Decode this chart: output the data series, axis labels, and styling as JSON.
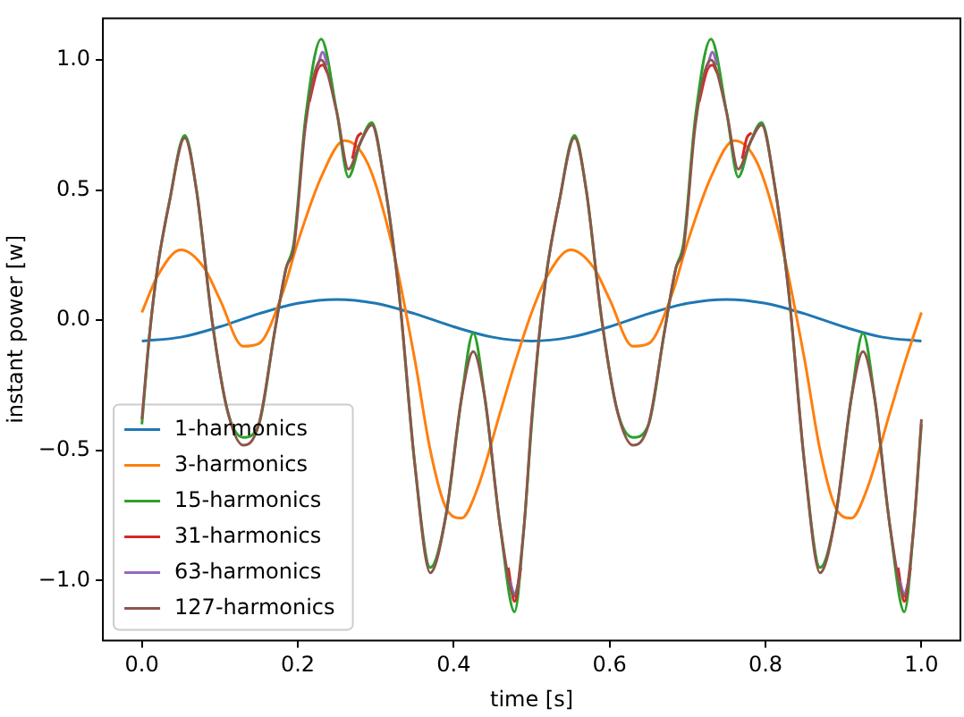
{
  "chart_data": {
    "type": "line",
    "xlabel": "time [s]",
    "ylabel": "instant power [w]",
    "xlim": [
      -0.05,
      1.05
    ],
    "ylim": [
      -1.23,
      1.16
    ],
    "xticks": [
      {
        "value": 0,
        "label": "0.0"
      },
      {
        "value": 0.2,
        "label": "0.2"
      },
      {
        "value": 0.4,
        "label": "0.4"
      },
      {
        "value": 0.6,
        "label": "0.6"
      },
      {
        "value": 0.8,
        "label": "0.8"
      },
      {
        "value": 1,
        "label": "1.0"
      }
    ],
    "yticks": [
      {
        "value": -1,
        "label": "−1.0"
      },
      {
        "value": -0.5,
        "label": "−0.5"
      },
      {
        "value": 0,
        "label": "0.0"
      },
      {
        "value": 0.5,
        "label": "0.5"
      },
      {
        "value": 1,
        "label": "1.0"
      }
    ],
    "legend": "bottom left",
    "grid": false,
    "series": [
      {
        "name": "1-harmonics",
        "color": "#1f77b4",
        "x": [
          0,
          0.05,
          0.1,
          0.15,
          0.2,
          0.25,
          0.3,
          0.35,
          0.4,
          0.45,
          0.5,
          0.55,
          0.6,
          0.65,
          0.7,
          0.75,
          0.8,
          0.85,
          0.9,
          0.95,
          1
        ],
        "values": [
          -0.08,
          -0.065,
          -0.025,
          0.025,
          0.065,
          0.08,
          0.065,
          0.025,
          -0.025,
          -0.065,
          -0.08,
          -0.065,
          -0.025,
          0.025,
          0.065,
          0.08,
          0.065,
          0.025,
          -0.025,
          -0.065,
          -0.08
        ]
      },
      {
        "name": "3-harmonics",
        "color": "#ff7f0e",
        "x": [
          0,
          0.02,
          0.05,
          0.08,
          0.1,
          0.13,
          0.15,
          0.18,
          0.2,
          0.23,
          0.26,
          0.29,
          0.32,
          0.35,
          0.37,
          0.39,
          0.41,
          0.43,
          0.46,
          0.48,
          0.5,
          0.52,
          0.55,
          0.58,
          0.6,
          0.63,
          0.65,
          0.68,
          0.7,
          0.73,
          0.76,
          0.79,
          0.82,
          0.85,
          0.87,
          0.89,
          0.91,
          0.93,
          0.96,
          0.98,
          1
        ],
        "values": [
          0.03,
          0.17,
          0.27,
          0.2,
          0.08,
          -0.1,
          -0.09,
          0.1,
          0.3,
          0.55,
          0.69,
          0.6,
          0.3,
          -0.15,
          -0.5,
          -0.72,
          -0.76,
          -0.65,
          -0.35,
          -0.15,
          0.03,
          0.17,
          0.27,
          0.2,
          0.08,
          -0.1,
          -0.09,
          0.1,
          0.3,
          0.55,
          0.69,
          0.6,
          0.3,
          -0.15,
          -0.5,
          -0.72,
          -0.76,
          -0.65,
          -0.35,
          -0.15,
          0.03
        ]
      },
      {
        "name": "15-harmonics",
        "color": "#2ca02c",
        "x": [
          0,
          0.01,
          0.02,
          0.035,
          0.055,
          0.07,
          0.09,
          0.11,
          0.13,
          0.15,
          0.17,
          0.185,
          0.195,
          0.21,
          0.23,
          0.25,
          0.265,
          0.28,
          0.295,
          0.31,
          0.33,
          0.35,
          0.37,
          0.39,
          0.41,
          0.425,
          0.44,
          0.46,
          0.478,
          0.49,
          0.5,
          0.51,
          0.52,
          0.535,
          0.555,
          0.57,
          0.59,
          0.61,
          0.63,
          0.65,
          0.67,
          0.685,
          0.695,
          0.71,
          0.73,
          0.75,
          0.765,
          0.78,
          0.795,
          0.81,
          0.83,
          0.85,
          0.87,
          0.89,
          0.91,
          0.925,
          0.94,
          0.96,
          0.978,
          0.99,
          1
        ],
        "values": [
          -0.4,
          -0.05,
          0.2,
          0.45,
          0.71,
          0.5,
          0.0,
          -0.35,
          -0.45,
          -0.4,
          -0.05,
          0.2,
          0.3,
          0.78,
          1.08,
          0.8,
          0.55,
          0.68,
          0.76,
          0.55,
          0.1,
          -0.55,
          -0.95,
          -0.75,
          -0.3,
          -0.05,
          -0.3,
          -0.8,
          -1.12,
          -0.8,
          -0.4,
          -0.05,
          0.2,
          0.45,
          0.71,
          0.5,
          0.0,
          -0.35,
          -0.45,
          -0.4,
          -0.05,
          0.2,
          0.3,
          0.78,
          1.08,
          0.8,
          0.55,
          0.68,
          0.76,
          0.55,
          0.1,
          -0.55,
          -0.95,
          -0.75,
          -0.3,
          -0.05,
          -0.3,
          -0.8,
          -1.12,
          -0.8,
          -0.4
        ]
      },
      {
        "name": "31-harmonics",
        "color": "#d62728",
        "x": [
          0.215,
          0.225,
          0.232,
          0.238,
          0.25,
          0.27,
          0.276,
          0.282,
          0.3,
          0.47,
          0.478,
          0.486,
          0.5,
          0.715,
          0.725,
          0.732,
          0.738,
          0.75,
          0.77,
          0.776,
          0.782,
          0.8,
          0.97,
          0.978,
          0.986
        ],
        "values": [
          0.84,
          0.96,
          0.98,
          0.95,
          null,
          0.62,
          0.7,
          0.72,
          null,
          -0.95,
          -1.08,
          -0.95,
          null,
          0.84,
          0.96,
          0.98,
          0.95,
          null,
          0.62,
          0.7,
          0.72,
          null,
          -0.95,
          -1.08,
          -0.95
        ]
      },
      {
        "name": "63-harmonics",
        "color": "#9467bd",
        "x": [
          0.225,
          0.232,
          0.238,
          0.25,
          0.472,
          0.478,
          0.484,
          0.5,
          0.725,
          0.732,
          0.738,
          0.75,
          0.972,
          0.978,
          0.984
        ],
        "values": [
          0.97,
          1.03,
          0.98,
          null,
          -1.0,
          -1.05,
          -1.0,
          null,
          0.97,
          1.03,
          0.98,
          null,
          -1.0,
          -1.05,
          -1.0
        ]
      },
      {
        "name": "127-harmonics",
        "color": "#8c564b",
        "x": [
          0,
          0.01,
          0.02,
          0.035,
          0.055,
          0.07,
          0.09,
          0.11,
          0.13,
          0.15,
          0.17,
          0.185,
          0.195,
          0.21,
          0.23,
          0.25,
          0.265,
          0.28,
          0.295,
          0.31,
          0.33,
          0.35,
          0.37,
          0.39,
          0.41,
          0.425,
          0.44,
          0.46,
          0.478,
          0.49,
          0.5,
          0.51,
          0.52,
          0.535,
          0.555,
          0.57,
          0.59,
          0.61,
          0.63,
          0.65,
          0.67,
          0.685,
          0.695,
          0.71,
          0.73,
          0.75,
          0.765,
          0.78,
          0.795,
          0.81,
          0.83,
          0.85,
          0.87,
          0.89,
          0.91,
          0.925,
          0.94,
          0.96,
          0.978,
          0.99,
          1
        ],
        "values": [
          -0.38,
          -0.05,
          0.2,
          0.45,
          0.7,
          0.5,
          0.0,
          -0.35,
          -0.48,
          -0.4,
          -0.05,
          0.2,
          0.28,
          0.75,
          1.0,
          0.8,
          0.58,
          0.68,
          0.75,
          0.55,
          0.1,
          -0.55,
          -0.97,
          -0.75,
          -0.3,
          -0.12,
          -0.3,
          -0.8,
          -1.06,
          -0.8,
          -0.38,
          -0.05,
          0.2,
          0.45,
          0.7,
          0.5,
          0.0,
          -0.35,
          -0.48,
          -0.4,
          -0.05,
          0.2,
          0.28,
          0.75,
          1.0,
          0.8,
          0.58,
          0.68,
          0.75,
          0.55,
          0.1,
          -0.55,
          -0.97,
          -0.75,
          -0.3,
          -0.12,
          -0.3,
          -0.8,
          -1.06,
          -0.8,
          -0.38
        ]
      }
    ]
  }
}
